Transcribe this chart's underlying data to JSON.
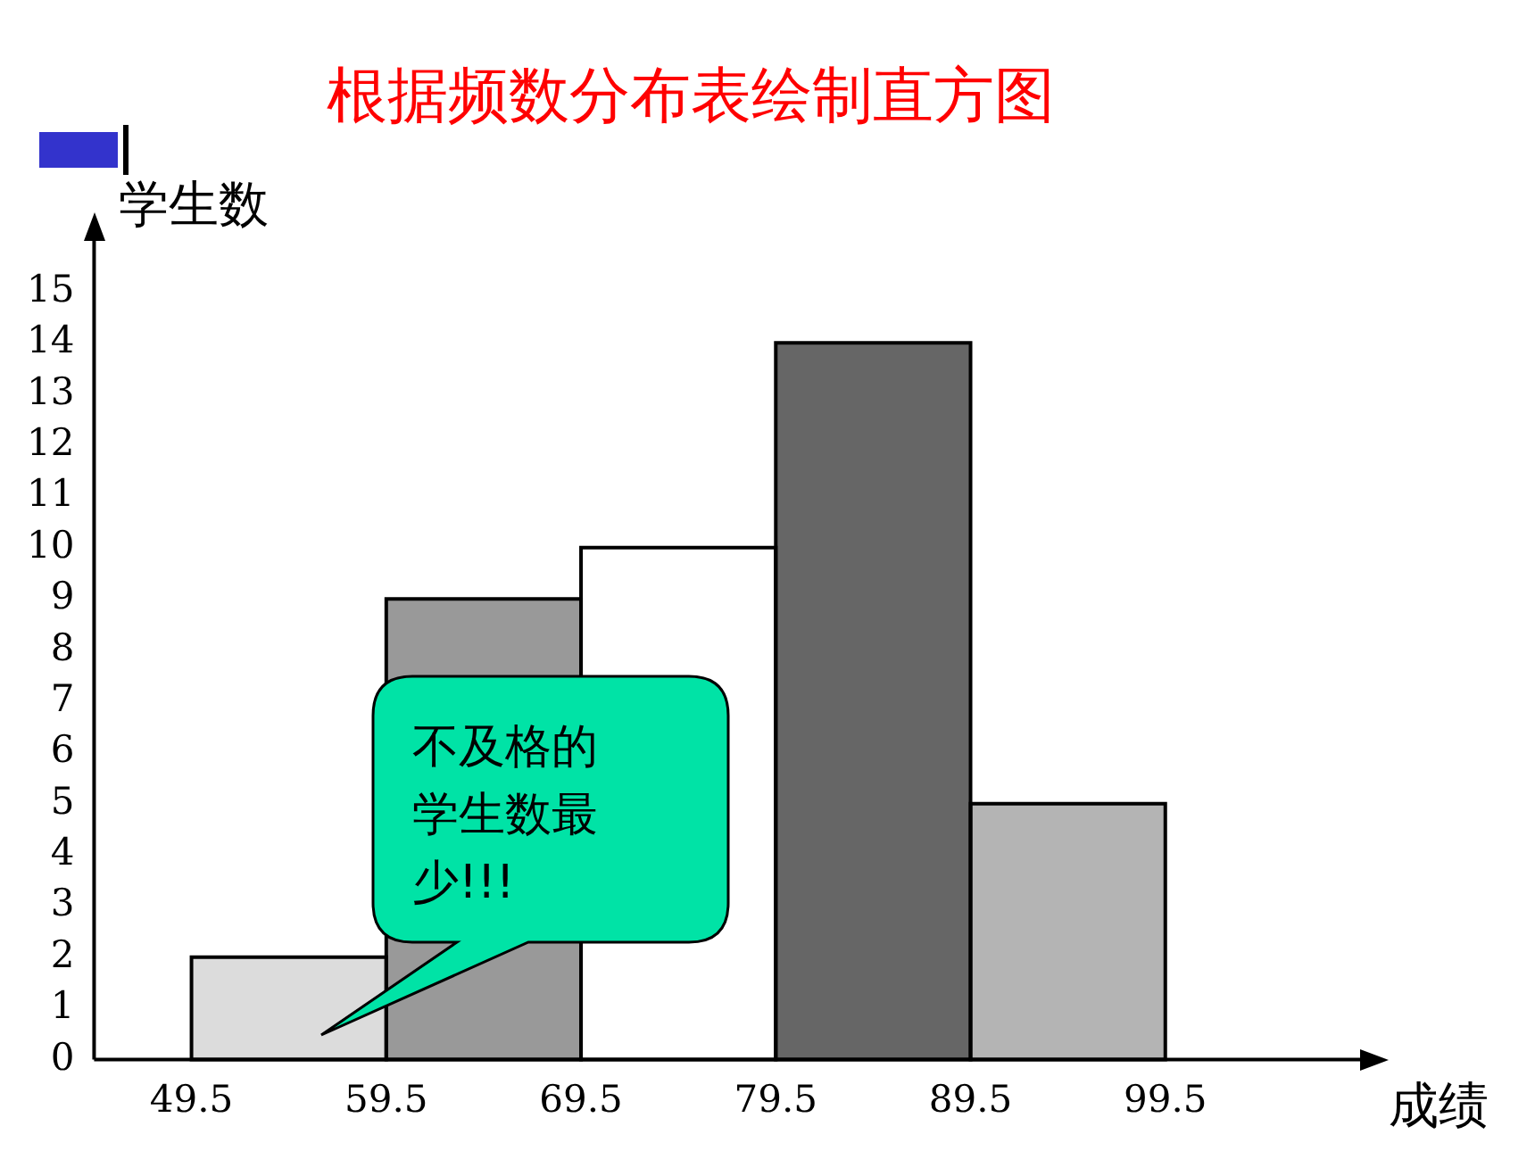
{
  "chart_data": {
    "type": "histogram",
    "title": "根据频数分布表绘制直方图",
    "xlabel": "成绩",
    "ylabel": "学生数",
    "bins": [
      49.5,
      59.5,
      69.5,
      79.5,
      89.5,
      99.5
    ],
    "values": [
      2,
      9,
      10,
      14,
      5
    ],
    "colors": [
      "#dcdcdc",
      "#999999",
      "#ffffff",
      "#666666",
      "#b4b4b4"
    ],
    "xlim": [
      44.5,
      109.5
    ],
    "xticks": [
      49.5,
      59.5,
      69.5,
      79.5,
      89.5,
      99.5
    ],
    "ylim": [
      0,
      16
    ],
    "yticks": [
      0,
      1,
      2,
      3,
      4,
      5,
      6,
      7,
      8,
      9,
      10,
      11,
      12,
      13,
      14,
      15
    ],
    "grid": false,
    "legend": false,
    "annotations": [
      "不及格的学生数最少!!!"
    ]
  }
}
